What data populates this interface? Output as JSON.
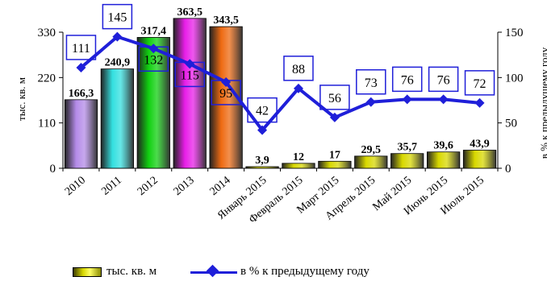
{
  "chart_data": {
    "type": "bar",
    "categories": [
      "2010",
      "2011",
      "2012",
      "2013",
      "2014",
      "Январь 2015",
      "Февраль 2015",
      "Март 2015",
      "Апрель 2015",
      "Май 2015",
      "Июнь 2015",
      "Июль 2015"
    ],
    "series": [
      {
        "name": "тыс. кв. м",
        "type": "bar",
        "axis": "left",
        "values": [
          166.3,
          240.9,
          317.4,
          363.5,
          343.5,
          3.9,
          12,
          17,
          29.5,
          35.7,
          39.6,
          43.9
        ],
        "labels": [
          "166,3",
          "240,9",
          "317,4",
          "363,5",
          "343,5",
          "3,9",
          "12",
          "17",
          "29,5",
          "35,7",
          "39,6",
          "43,9"
        ],
        "colors": [
          "#b48be8",
          "#33e0e0",
          "#10d010",
          "#e81ee8",
          "#ee6a12",
          "#d8d800",
          "#d8d800",
          "#d8d800",
          "#d8d800",
          "#d8d800",
          "#d8d800",
          "#d8d800"
        ]
      },
      {
        "name": "в % к предыдущему году",
        "type": "line",
        "axis": "right",
        "values": [
          111,
          145,
          132,
          115,
          95,
          42,
          88,
          56,
          73,
          76,
          76,
          72
        ],
        "labels": [
          "111",
          "145",
          "132",
          "115",
          "95",
          "42",
          "88",
          "56",
          "73",
          "76",
          "76",
          "72"
        ],
        "color": "#1f1fd9"
      }
    ],
    "ylabel": "тыс. кв. м",
    "y2label": "в % к предыдущему году",
    "yticks": [
      "0",
      "110",
      "220",
      "330"
    ],
    "y2ticks": [
      "0",
      "50",
      "100",
      "150"
    ],
    "ylim": [
      0,
      330
    ],
    "y2lim": [
      0,
      150
    ],
    "grid": false,
    "legend_position": "bottom"
  }
}
